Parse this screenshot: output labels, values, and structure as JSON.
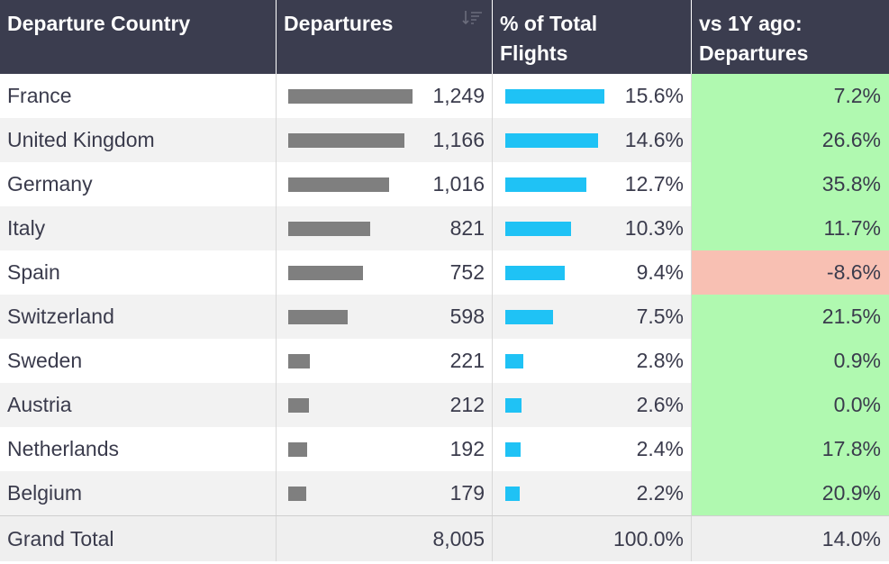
{
  "headers": {
    "country": "Departure Country",
    "departures": "Departures",
    "pct_line1": "% of Total",
    "pct_line2": "Flights",
    "chg_line1": "vs 1Y ago:",
    "chg_line2": "Departures"
  },
  "colors": {
    "header_bg": "#3b3d4f",
    "departures_bar": "#7f7f7f",
    "pct_bar": "#1fc2f5",
    "positive_bg": "#b0f9b0",
    "negative_bg": "#f8c0b3"
  },
  "rows": [
    {
      "country": "France",
      "departures": "1,249",
      "dep_value": 1249,
      "pct": "15.6%",
      "pct_value": 15.6,
      "change": "7.2%",
      "change_sign": "pos"
    },
    {
      "country": "United Kingdom",
      "departures": "1,166",
      "dep_value": 1166,
      "pct": "14.6%",
      "pct_value": 14.6,
      "change": "26.6%",
      "change_sign": "pos"
    },
    {
      "country": "Germany",
      "departures": "1,016",
      "dep_value": 1016,
      "pct": "12.7%",
      "pct_value": 12.7,
      "change": "35.8%",
      "change_sign": "pos"
    },
    {
      "country": "Italy",
      "departures": "821",
      "dep_value": 821,
      "pct": "10.3%",
      "pct_value": 10.3,
      "change": "11.7%",
      "change_sign": "pos"
    },
    {
      "country": "Spain",
      "departures": "752",
      "dep_value": 752,
      "pct": "9.4%",
      "pct_value": 9.4,
      "change": "-8.6%",
      "change_sign": "neg"
    },
    {
      "country": "Switzerland",
      "departures": "598",
      "dep_value": 598,
      "pct": "7.5%",
      "pct_value": 7.5,
      "change": "21.5%",
      "change_sign": "pos"
    },
    {
      "country": "Sweden",
      "departures": "221",
      "dep_value": 221,
      "pct": "2.8%",
      "pct_value": 2.8,
      "change": "0.9%",
      "change_sign": "pos"
    },
    {
      "country": "Austria",
      "departures": "212",
      "dep_value": 212,
      "pct": "2.6%",
      "pct_value": 2.6,
      "change": "0.0%",
      "change_sign": "pos"
    },
    {
      "country": "Netherlands",
      "departures": "192",
      "dep_value": 192,
      "pct": "2.4%",
      "pct_value": 2.4,
      "change": "17.8%",
      "change_sign": "pos"
    },
    {
      "country": "Belgium",
      "departures": "179",
      "dep_value": 179,
      "pct": "2.2%",
      "pct_value": 2.2,
      "change": "20.9%",
      "change_sign": "pos"
    }
  ],
  "total": {
    "label": "Grand Total",
    "departures": "8,005",
    "pct": "100.0%",
    "change": "14.0%"
  },
  "sort_icon": "sort-descending-icon"
}
